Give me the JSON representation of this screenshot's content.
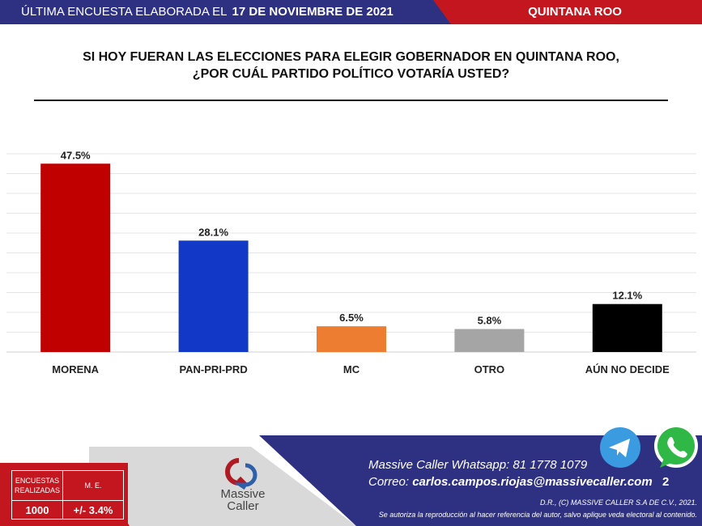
{
  "header": {
    "prefix": "ÚLTIMA ENCUESTA ELABORADA EL",
    "date": "17 DE NOVIEMBRE DE 2021",
    "region": "QUINTANA ROO"
  },
  "title_lines": [
    "SI HOY FUERAN LAS ELECCIONES PARA ELEGIR GOBERNADOR EN QUINTANA ROO,",
    "¿POR CUÁL PARTIDO POLÍTICO VOTARÍA USTED?"
  ],
  "chart_data": {
    "type": "bar",
    "title": "SI HOY FUERAN LAS ELECCIONES PARA ELEGIR GOBERNADOR EN QUINTANA ROO, ¿POR CUÁL PARTIDO POLÍTICO VOTARÍA USTED?",
    "categories": [
      "MORENA",
      "PAN-PRI-PRD",
      "MC",
      "OTRO",
      "AÚN NO DECIDE"
    ],
    "values": [
      47.5,
      28.1,
      6.5,
      5.8,
      12.1
    ],
    "labels": [
      "47.5%",
      "28.1%",
      "6.5%",
      "5.8%",
      "12.1%"
    ],
    "colors": [
      "#c00000",
      "#1238c8",
      "#ed7d31",
      "#a5a5a5",
      "#000000"
    ],
    "ylim": [
      0,
      50
    ],
    "grid": true,
    "xlabel": "",
    "ylabel": ""
  },
  "footer": {
    "table_head1": [
      "ENCUESTAS",
      "REALIZADAS"
    ],
    "table_head2": "M. E.",
    "sample": "1000",
    "margin": "+/- 3.4%",
    "logo_text": [
      "Massive",
      "Caller"
    ],
    "whatsapp_label": "Massive Caller Whatsapp:",
    "whatsapp_number": "81 1778 1079",
    "email_label": "Correo:",
    "email": "carlos.campos.riojas@massivecaller.com",
    "page": "2",
    "copyright": "D.R., (C) MASSIVE CALLER S.A DE C.V., 2021.",
    "notice": "Se autoriza la reproducción al hacer referencia del autor, salvo aplique veda electoral al contenido."
  }
}
